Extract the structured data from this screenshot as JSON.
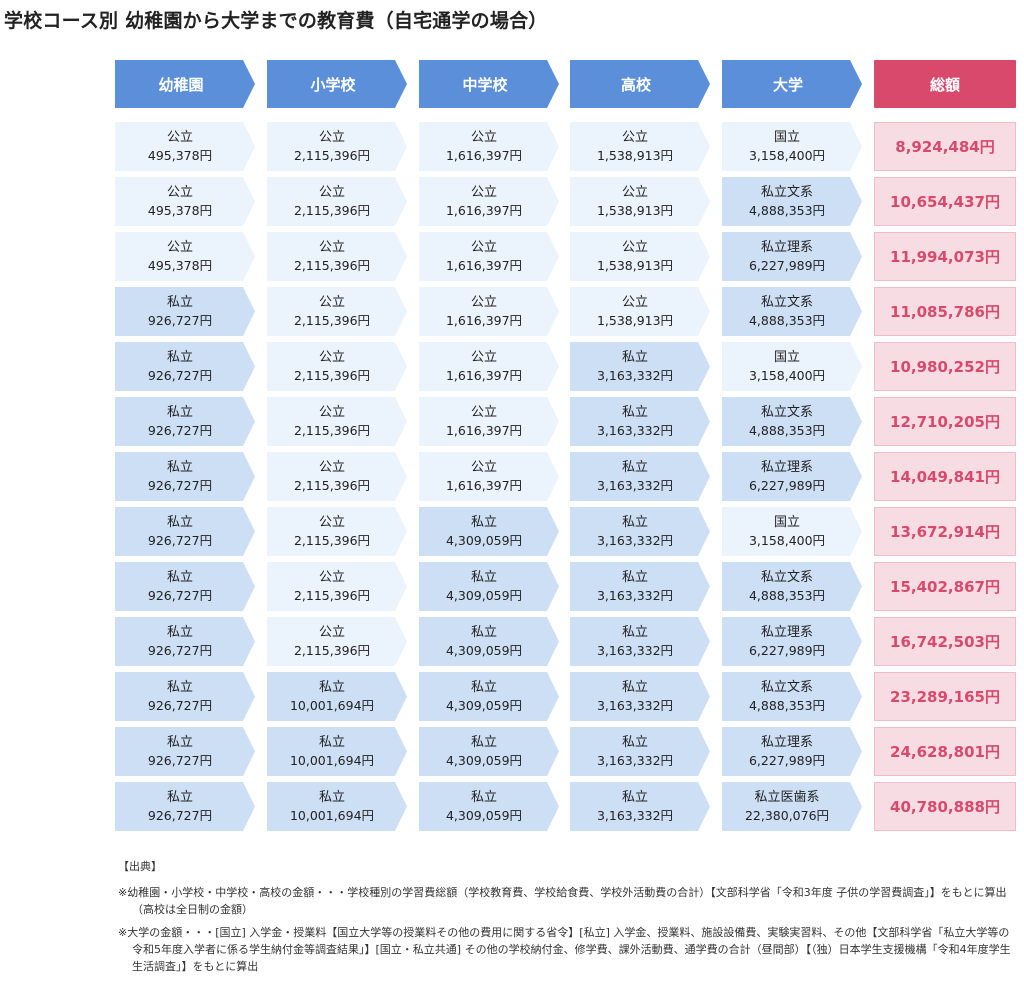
{
  "title": "学校コース別 幼稚園から大学までの教育費（自宅通学の場合）",
  "headers": [
    "幼稚園",
    "小学校",
    "中学校",
    "高校",
    "大学"
  ],
  "total_header": "総額",
  "rows": [
    {
      "cells": [
        {
          "type": "公立",
          "amount": "495,378円",
          "private": false
        },
        {
          "type": "公立",
          "amount": "2,115,396円",
          "private": false
        },
        {
          "type": "公立",
          "amount": "1,616,397円",
          "private": false
        },
        {
          "type": "公立",
          "amount": "1,538,913円",
          "private": false
        },
        {
          "type": "国立",
          "amount": "3,158,400円",
          "private": false
        }
      ],
      "total": "8,924,484円"
    },
    {
      "cells": [
        {
          "type": "公立",
          "amount": "495,378円",
          "private": false
        },
        {
          "type": "公立",
          "amount": "2,115,396円",
          "private": false
        },
        {
          "type": "公立",
          "amount": "1,616,397円",
          "private": false
        },
        {
          "type": "公立",
          "amount": "1,538,913円",
          "private": false
        },
        {
          "type": "私立文系",
          "amount": "4,888,353円",
          "private": true
        }
      ],
      "total": "10,654,437円"
    },
    {
      "cells": [
        {
          "type": "公立",
          "amount": "495,378円",
          "private": false
        },
        {
          "type": "公立",
          "amount": "2,115,396円",
          "private": false
        },
        {
          "type": "公立",
          "amount": "1,616,397円",
          "private": false
        },
        {
          "type": "公立",
          "amount": "1,538,913円",
          "private": false
        },
        {
          "type": "私立理系",
          "amount": "6,227,989円",
          "private": true
        }
      ],
      "total": "11,994,073円"
    },
    {
      "cells": [
        {
          "type": "私立",
          "amount": "926,727円",
          "private": true
        },
        {
          "type": "公立",
          "amount": "2,115,396円",
          "private": false
        },
        {
          "type": "公立",
          "amount": "1,616,397円",
          "private": false
        },
        {
          "type": "公立",
          "amount": "1,538,913円",
          "private": false
        },
        {
          "type": "私立文系",
          "amount": "4,888,353円",
          "private": true
        }
      ],
      "total": "11,085,786円"
    },
    {
      "cells": [
        {
          "type": "私立",
          "amount": "926,727円",
          "private": true
        },
        {
          "type": "公立",
          "amount": "2,115,396円",
          "private": false
        },
        {
          "type": "公立",
          "amount": "1,616,397円",
          "private": false
        },
        {
          "type": "私立",
          "amount": "3,163,332円",
          "private": true
        },
        {
          "type": "国立",
          "amount": "3,158,400円",
          "private": false
        }
      ],
      "total": "10,980,252円"
    },
    {
      "cells": [
        {
          "type": "私立",
          "amount": "926,727円",
          "private": true
        },
        {
          "type": "公立",
          "amount": "2,115,396円",
          "private": false
        },
        {
          "type": "公立",
          "amount": "1,616,397円",
          "private": false
        },
        {
          "type": "私立",
          "amount": "3,163,332円",
          "private": true
        },
        {
          "type": "私立文系",
          "amount": "4,888,353円",
          "private": true
        }
      ],
      "total": "12,710,205円"
    },
    {
      "cells": [
        {
          "type": "私立",
          "amount": "926,727円",
          "private": true
        },
        {
          "type": "公立",
          "amount": "2,115,396円",
          "private": false
        },
        {
          "type": "公立",
          "amount": "1,616,397円",
          "private": false
        },
        {
          "type": "私立",
          "amount": "3,163,332円",
          "private": true
        },
        {
          "type": "私立理系",
          "amount": "6,227,989円",
          "private": true
        }
      ],
      "total": "14,049,841円"
    },
    {
      "cells": [
        {
          "type": "私立",
          "amount": "926,727円",
          "private": true
        },
        {
          "type": "公立",
          "amount": "2,115,396円",
          "private": false
        },
        {
          "type": "私立",
          "amount": "4,309,059円",
          "private": true
        },
        {
          "type": "私立",
          "amount": "3,163,332円",
          "private": true
        },
        {
          "type": "国立",
          "amount": "3,158,400円",
          "private": false
        }
      ],
      "total": "13,672,914円"
    },
    {
      "cells": [
        {
          "type": "私立",
          "amount": "926,727円",
          "private": true
        },
        {
          "type": "公立",
          "amount": "2,115,396円",
          "private": false
        },
        {
          "type": "私立",
          "amount": "4,309,059円",
          "private": true
        },
        {
          "type": "私立",
          "amount": "3,163,332円",
          "private": true
        },
        {
          "type": "私立文系",
          "amount": "4,888,353円",
          "private": true
        }
      ],
      "total": "15,402,867円"
    },
    {
      "cells": [
        {
          "type": "私立",
          "amount": "926,727円",
          "private": true
        },
        {
          "type": "公立",
          "amount": "2,115,396円",
          "private": false
        },
        {
          "type": "私立",
          "amount": "4,309,059円",
          "private": true
        },
        {
          "type": "私立",
          "amount": "3,163,332円",
          "private": true
        },
        {
          "type": "私立理系",
          "amount": "6,227,989円",
          "private": true
        }
      ],
      "total": "16,742,503円"
    },
    {
      "cells": [
        {
          "type": "私立",
          "amount": "926,727円",
          "private": true
        },
        {
          "type": "私立",
          "amount": "10,001,694円",
          "private": true
        },
        {
          "type": "私立",
          "amount": "4,309,059円",
          "private": true
        },
        {
          "type": "私立",
          "amount": "3,163,332円",
          "private": true
        },
        {
          "type": "私立文系",
          "amount": "4,888,353円",
          "private": true
        }
      ],
      "total": "23,289,165円"
    },
    {
      "cells": [
        {
          "type": "私立",
          "amount": "926,727円",
          "private": true
        },
        {
          "type": "私立",
          "amount": "10,001,694円",
          "private": true
        },
        {
          "type": "私立",
          "amount": "4,309,059円",
          "private": true
        },
        {
          "type": "私立",
          "amount": "3,163,332円",
          "private": true
        },
        {
          "type": "私立理系",
          "amount": "6,227,989円",
          "private": true
        }
      ],
      "total": "24,628,801円"
    },
    {
      "cells": [
        {
          "type": "私立",
          "amount": "926,727円",
          "private": true
        },
        {
          "type": "私立",
          "amount": "10,001,694円",
          "private": true
        },
        {
          "type": "私立",
          "amount": "4,309,059円",
          "private": true
        },
        {
          "type": "私立",
          "amount": "3,163,332円",
          "private": true
        },
        {
          "type": "私立医歯系",
          "amount": "22,380,076円",
          "private": true
        }
      ],
      "total": "40,780,888円"
    }
  ],
  "colors": {
    "header": "#5b8fd9",
    "total_header": "#d9496b",
    "public_cell": "#ebf3fc",
    "private_cell": "#cddff5",
    "total_cell": "#f7dce3",
    "total_text": "#d9496b"
  },
  "notes": {
    "source_label": "【出典】",
    "items": [
      "※幼稚園・小学校・中学校・高校の金額・・・学校種別の学習費総額（学校教育費、学校給食費、学校外活動費の合計）【文部科学省「令和3年度 子供の学習費調査」】をもとに算出（高校は全日制の金額）",
      "※大学の金額・・・[国立] 入学金・授業料【国立大学等の授業料その他の費用に関する省令】[私立] 入学金、授業料、施設設備費、実験実習料、その他【文部科学省「私立大学等の令和5年度入学者に係る学生納付金等調査結果」】[国立・私立共通] その他の学校納付金、修学費、課外活動費、通学費の合計（昼間部）【（独）日本学生支援機構「令和4年度学生生活調査」】をもとに算出"
    ]
  }
}
